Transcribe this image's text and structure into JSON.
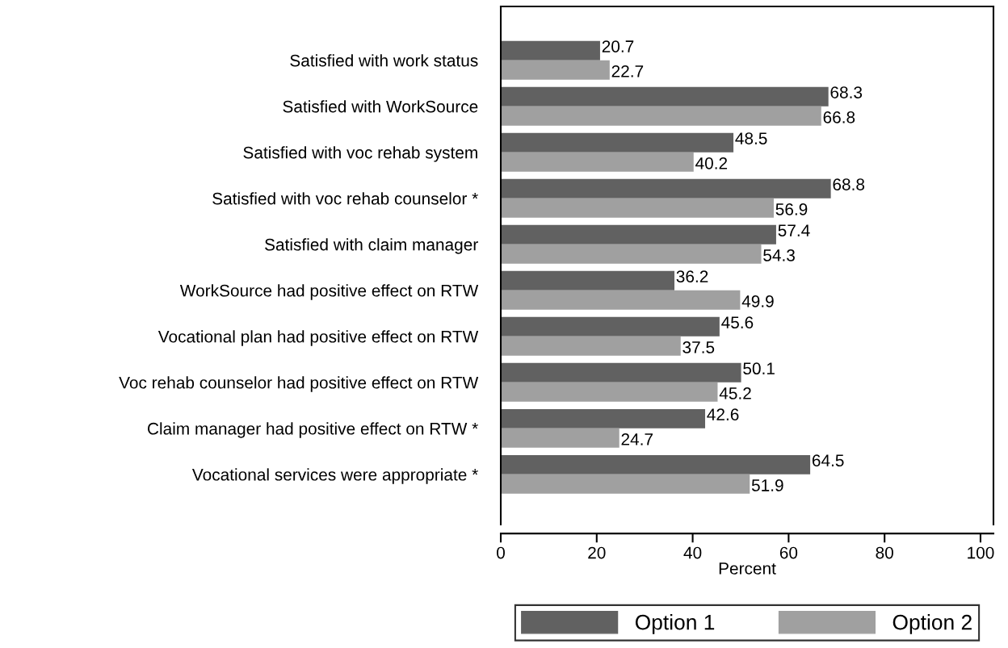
{
  "chart_data": {
    "type": "bar",
    "orientation": "horizontal",
    "xlabel": "Percent",
    "categories": [
      "Satisfied with work status",
      "Satisfied with WorkSource",
      "Satisfied with voc rehab system",
      "Satisfied with voc rehab counselor *",
      "Satisfied with claim manager",
      "WorkSource had positive effect on RTW",
      "Vocational plan had positive effect on RTW",
      "Voc rehab counselor had positive effect on RTW",
      "Claim manager had positive effect on RTW *",
      "Vocational services were appropriate *"
    ],
    "series": [
      {
        "name": "Option 1",
        "color": "#616161",
        "values": [
          20.7,
          68.3,
          48.5,
          68.8,
          57.4,
          36.2,
          45.6,
          50.1,
          42.6,
          64.5
        ]
      },
      {
        "name": "Option 2",
        "color": "#a0a0a0",
        "values": [
          22.7,
          66.8,
          40.2,
          56.9,
          54.3,
          49.9,
          37.5,
          45.2,
          24.7,
          51.9
        ]
      }
    ],
    "xlim": [
      0,
      102.7
    ],
    "xticks": [
      0,
      20,
      40,
      60,
      80,
      100
    ],
    "data_labels": true,
    "grid": false,
    "legend": "bottom"
  }
}
